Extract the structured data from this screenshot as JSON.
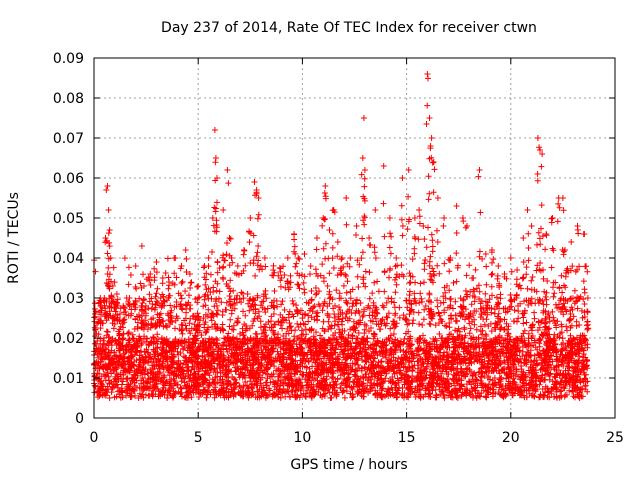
{
  "chart_data": {
    "type": "scatter",
    "title": "Day 237 of 2014, Rate Of TEC Index for receiver ctwn",
    "xlabel": "GPS time / hours",
    "ylabel": "ROTI / TECUs",
    "xlim": [
      0,
      25
    ],
    "ylim": [
      0,
      0.09
    ],
    "xticks": [
      0,
      5,
      10,
      15,
      20,
      25
    ],
    "yticks": [
      0,
      0.01,
      0.02,
      0.03,
      0.04,
      0.05,
      0.06,
      0.07,
      0.08,
      0.09
    ],
    "ytick_labels": [
      "0",
      "0.01",
      "0.02",
      "0.03",
      "0.04",
      "0.05",
      "0.06",
      "0.07",
      "0.08",
      "0.09"
    ],
    "xtick_labels": [
      "0",
      "5",
      "10",
      "15",
      "20",
      "25"
    ],
    "grid": true,
    "marker": "+",
    "color": "#ff0000",
    "x_range_of_data": [
      0,
      23.7
    ],
    "series": [
      {
        "x": [
          0.05,
          0.3,
          0.55,
          0.65,
          0.7,
          0.75,
          0.8,
          0.9,
          1.1,
          1.4,
          1.7,
          2.0,
          2.3,
          2.4,
          2.7,
          3.0,
          3.2,
          3.3,
          3.6,
          3.9,
          4.2,
          4.4,
          4.6,
          5.0,
          5.3,
          5.5,
          5.7,
          5.8,
          5.85,
          5.9,
          6.2,
          6.4,
          6.5,
          6.6,
          6.9,
          7.2,
          7.5,
          7.7,
          7.8,
          7.9,
          8.2,
          8.6,
          9.0,
          9.3,
          9.6,
          9.8,
          10.1,
          10.4,
          10.7,
          11.0,
          11.1,
          11.3,
          11.5,
          11.7,
          11.9,
          12.1,
          12.3,
          12.6,
          12.9,
          12.95,
          13.0,
          13.2,
          13.5,
          13.9,
          14.2,
          14.5,
          14.8,
          15.1,
          15.4,
          15.6,
          15.8,
          16.0,
          16.1,
          16.15,
          16.2,
          16.3,
          16.5,
          16.8,
          17.1,
          17.4,
          17.7,
          17.9,
          18.2,
          18.5,
          18.8,
          19.1,
          19.4,
          19.7,
          20.0,
          20.3,
          20.6,
          20.8,
          21.0,
          21.3,
          21.4,
          21.5,
          21.7,
          22.0,
          22.3,
          22.5,
          22.6,
          22.9,
          23.2,
          23.5,
          23.7
        ],
        "y": [
          0.026,
          0.03,
          0.045,
          0.058,
          0.052,
          0.047,
          0.04,
          0.033,
          0.031,
          0.028,
          0.03,
          0.038,
          0.043,
          0.033,
          0.036,
          0.039,
          0.03,
          0.035,
          0.034,
          0.04,
          0.038,
          0.042,
          0.036,
          0.033,
          0.038,
          0.04,
          0.05,
          0.072,
          0.065,
          0.06,
          0.052,
          0.062,
          0.045,
          0.04,
          0.038,
          0.042,
          0.05,
          0.059,
          0.057,
          0.055,
          0.04,
          0.037,
          0.035,
          0.04,
          0.046,
          0.04,
          0.041,
          0.038,
          0.045,
          0.05,
          0.058,
          0.047,
          0.052,
          0.044,
          0.04,
          0.055,
          0.04,
          0.048,
          0.065,
          0.075,
          0.062,
          0.045,
          0.052,
          0.063,
          0.05,
          0.04,
          0.06,
          0.062,
          0.05,
          0.052,
          0.048,
          0.086,
          0.075,
          0.068,
          0.07,
          0.064,
          0.055,
          0.05,
          0.04,
          0.053,
          0.05,
          0.048,
          0.035,
          0.062,
          0.041,
          0.042,
          0.038,
          0.036,
          0.04,
          0.037,
          0.045,
          0.052,
          0.048,
          0.07,
          0.067,
          0.066,
          0.046,
          0.05,
          0.055,
          0.055,
          0.042,
          0.044,
          0.048,
          0.046,
          0.03
        ],
        "note_bulk": "Dense continuous band of points from x=0 to 23.7 h with values mostly between 0.003 and 0.03"
      }
    ]
  }
}
